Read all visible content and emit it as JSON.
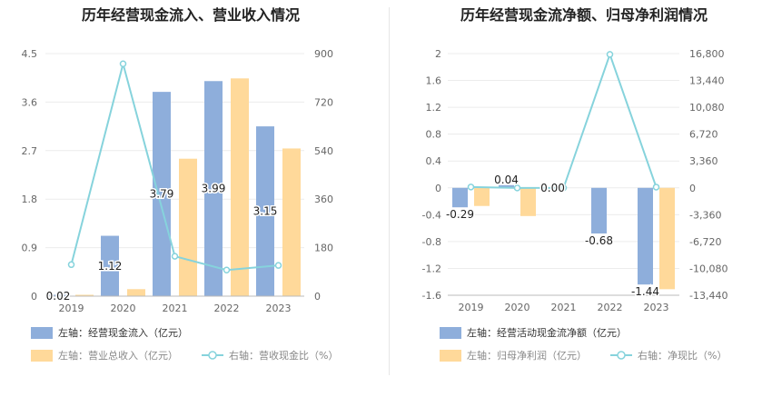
{
  "chart_data": [
    {
      "type": "bar",
      "title": "历年经营现金流入、营业收入情况",
      "categories": [
        "2019",
        "2020",
        "2021",
        "2022",
        "2023"
      ],
      "left_axis": {
        "min": 0,
        "max": 4.5,
        "ticks": [
          "0",
          "0.9",
          "1.8",
          "2.7",
          "3.6",
          "4.5"
        ]
      },
      "right_axis": {
        "min": 0,
        "max": 900,
        "ticks": [
          "0",
          "180",
          "360",
          "540",
          "720",
          "900"
        ]
      },
      "series": [
        {
          "name": "经营现金流入（亿元）",
          "axis": "left",
          "kind": "bar",
          "color": "#8eaedb",
          "values": [
            0.02,
            1.12,
            3.79,
            3.99,
            3.15
          ],
          "labels": [
            "0.02",
            "1.12",
            "3.79",
            "3.99",
            "3.15"
          ]
        },
        {
          "name": "营业总收入（亿元）",
          "axis": "left",
          "kind": "bar",
          "color": "#ffd99a",
          "values": [
            0.01,
            0.13,
            2.55,
            4.04,
            2.74
          ]
        },
        {
          "name": "营收现金比（%）",
          "axis": "right",
          "kind": "line",
          "color": "#86d3dc",
          "values": [
            117,
            862,
            148,
            97,
            114
          ]
        }
      ],
      "legend": [
        {
          "prefix": "左轴：",
          "name": "经营现金流入（亿元）",
          "kind": "bar",
          "color": "#8eaedb"
        },
        {
          "prefix": "左轴：",
          "name": "营业总收入（亿元）",
          "kind": "bar",
          "color": "#ffd99a"
        },
        {
          "prefix": "右轴：",
          "name": "营收现金比（%）",
          "kind": "line",
          "color": "#86d3dc"
        }
      ],
      "legend_position": "bottom"
    },
    {
      "type": "bar",
      "title": "历年经营现金流净额、归母净利润情况",
      "categories": [
        "2019",
        "2020",
        "2021",
        "2022",
        "2023"
      ],
      "left_axis": {
        "min": -1.6,
        "max": 2,
        "ticks": [
          "-1.6",
          "-1.2",
          "-0.8",
          "-0.4",
          "0",
          "0.4",
          "0.8",
          "1.2",
          "1.6",
          "2"
        ]
      },
      "right_axis": {
        "min": -13440,
        "max": 16800,
        "ticks": [
          "-13,440",
          "-10,080",
          "-6,720",
          "-3,360",
          "0",
          "3,360",
          "6,720",
          "10,080",
          "13,440",
          "16,800"
        ]
      },
      "series": [
        {
          "name": "经营活动现金流净额（亿元）",
          "axis": "left",
          "kind": "bar",
          "color": "#8eaedb",
          "values": [
            -0.29,
            0.04,
            0.0,
            -0.68,
            -1.44
          ],
          "labels": [
            "-0.29",
            "0.04",
            "0.00",
            "-0.68",
            "-1.44"
          ]
        },
        {
          "name": "归母净利润（亿元）",
          "axis": "left",
          "kind": "bar",
          "color": "#ffd99a",
          "values": [
            -0.27,
            -0.42,
            0.0,
            0.0,
            -1.51
          ]
        },
        {
          "name": "净现比（%）",
          "axis": "right",
          "kind": "line",
          "color": "#86d3dc",
          "values": [
            107,
            -10,
            0,
            16700,
            95
          ]
        }
      ],
      "legend": [
        {
          "prefix": "左轴：",
          "name": "经营活动现金流净额（亿元）",
          "kind": "bar",
          "color": "#8eaedb"
        },
        {
          "prefix": "左轴：",
          "name": "归母净利润（亿元）",
          "kind": "bar",
          "color": "#ffd99a"
        },
        {
          "prefix": "右轴：",
          "name": "净现比（%）",
          "kind": "line",
          "color": "#86d3dc"
        }
      ],
      "legend_position": "bottom"
    }
  ]
}
